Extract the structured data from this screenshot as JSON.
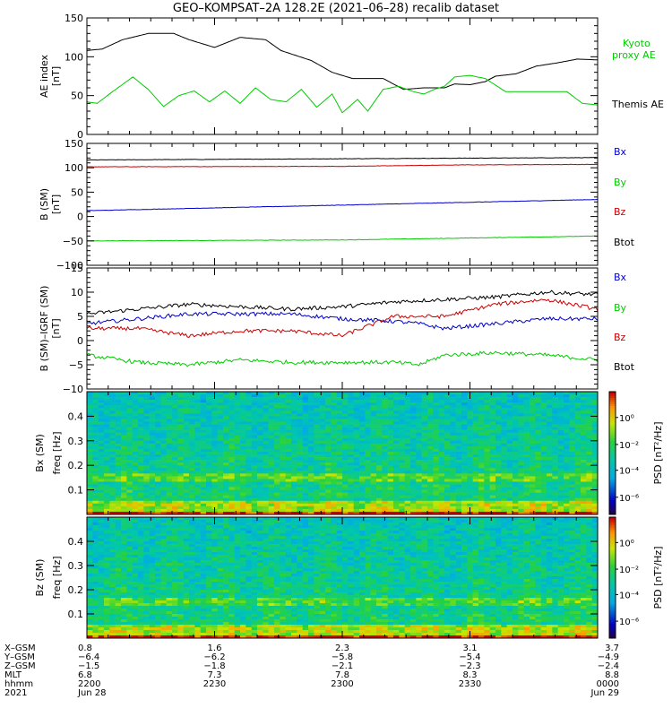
{
  "title": "GEO–KOMPSAT–2A 128.2E (2021–06–28) recalib dataset",
  "colors": {
    "black": "#000000",
    "green": "#00cc00",
    "red": "#cc0000",
    "blue": "#0000cc"
  },
  "chart_data": [
    {
      "type": "line",
      "ylabel": "AE index",
      "yunit": "[nT]",
      "ylim": [
        0,
        150
      ],
      "yticks": [
        "0",
        "50",
        "100",
        "150"
      ],
      "legend": [
        {
          "name": "Kyoto proxy AE",
          "color": "#00cc00"
        },
        {
          "name": "Themis AE",
          "color": "#000000"
        }
      ],
      "series": [
        {
          "name": "Themis AE",
          "color": "#000000",
          "x": [
            0,
            3,
            7,
            12,
            17,
            20,
            25,
            30,
            35,
            38,
            44,
            48,
            52,
            58,
            62,
            66,
            70,
            72,
            75,
            78,
            80,
            84,
            88,
            92,
            96,
            100
          ],
          "y": [
            108,
            110,
            122,
            130,
            130,
            122,
            112,
            125,
            122,
            108,
            95,
            80,
            72,
            72,
            58,
            60,
            60,
            65,
            64,
            68,
            75,
            78,
            88,
            92,
            97,
            96
          ]
        },
        {
          "name": "Kyoto proxy AE",
          "color": "#00cc00",
          "x": [
            0,
            2,
            5,
            9,
            12,
            15,
            18,
            21,
            24,
            27,
            30,
            33,
            36,
            39,
            42,
            45,
            48,
            50,
            53,
            55,
            58,
            61,
            64,
            66,
            68,
            70,
            72,
            75,
            78,
            82,
            86,
            90,
            94,
            97,
            100
          ],
          "y": [
            42,
            40,
            55,
            74,
            58,
            36,
            50,
            56,
            42,
            56,
            40,
            60,
            45,
            42,
            58,
            35,
            52,
            28,
            45,
            30,
            58,
            62,
            55,
            52,
            58,
            62,
            74,
            76,
            72,
            55,
            55,
            55,
            55,
            40,
            38
          ]
        }
      ]
    },
    {
      "type": "line",
      "ylabel": "B (SM)",
      "yunit": "[nT]",
      "ylim": [
        -100,
        150
      ],
      "yticks": [
        "−100",
        "−50",
        "0",
        "50",
        "100",
        "150"
      ],
      "legend": [
        {
          "name": "Bx",
          "color": "#0000cc"
        },
        {
          "name": "By",
          "color": "#00cc00"
        },
        {
          "name": "Bz",
          "color": "#cc0000"
        },
        {
          "name": "Btot",
          "color": "#000000"
        }
      ],
      "series": [
        {
          "name": "Btot",
          "color": "#000000",
          "x": [
            0,
            100
          ],
          "y": [
            116,
            121
          ]
        },
        {
          "name": "Bz",
          "color": "#cc0000",
          "x": [
            0,
            50,
            75,
            100
          ],
          "y": [
            102,
            103,
            106,
            107
          ]
        },
        {
          "name": "Bx",
          "color": "#0000cc",
          "x": [
            0,
            100
          ],
          "y": [
            12,
            35
          ]
        },
        {
          "name": "By",
          "color": "#00cc00",
          "x": [
            0,
            50,
            100
          ],
          "y": [
            -50,
            -48,
            -40
          ]
        }
      ]
    },
    {
      "type": "line",
      "ylabel": "B (SM)–IGRF (SM)",
      "yunit": "[nT]",
      "ylim": [
        -10,
        15
      ],
      "yticks": [
        "−10",
        "−5",
        "0",
        "5",
        "10",
        "15"
      ],
      "legend": [
        {
          "name": "Bx",
          "color": "#0000cc"
        },
        {
          "name": "By",
          "color": "#00cc00"
        },
        {
          "name": "Bz",
          "color": "#cc0000"
        },
        {
          "name": "Btot",
          "color": "#000000"
        }
      ],
      "series": [
        {
          "name": "Btot",
          "color": "#000000",
          "x": [
            0,
            10,
            20,
            30,
            40,
            50,
            60,
            70,
            80,
            90,
            100
          ],
          "y": [
            5.5,
            6.5,
            7.5,
            7,
            6.5,
            7,
            8,
            8.5,
            9,
            10,
            9.5
          ]
        },
        {
          "name": "Bx",
          "color": "#0000cc",
          "x": [
            0,
            10,
            20,
            30,
            40,
            50,
            60,
            65,
            70,
            80,
            90,
            100
          ],
          "y": [
            3.5,
            4.5,
            5.5,
            5.5,
            5.5,
            4.5,
            4,
            3.5,
            2.5,
            3.5,
            4.5,
            4.5
          ]
        },
        {
          "name": "Bz",
          "color": "#cc0000",
          "x": [
            0,
            10,
            20,
            30,
            40,
            50,
            60,
            70,
            80,
            90,
            95,
            100
          ],
          "y": [
            2.5,
            2.5,
            1,
            2,
            2,
            1,
            5,
            5,
            7.5,
            8.5,
            7.5,
            6.5
          ]
        },
        {
          "name": "By",
          "color": "#00cc00",
          "x": [
            0,
            10,
            20,
            30,
            40,
            50,
            60,
            65,
            70,
            80,
            90,
            100
          ],
          "y": [
            -3,
            -4.5,
            -5,
            -4,
            -4.5,
            -4.5,
            -4.5,
            -5,
            -3,
            -2.5,
            -3,
            -4
          ]
        }
      ]
    },
    {
      "type": "heatmap",
      "ylabel": "Bx (SM)",
      "sublabel": "freq [Hz]",
      "yticks": [
        "0.1",
        "0.2",
        "0.3",
        "0.4"
      ],
      "colorbar_label": "PSD [nT²/Hz]",
      "colorbar_ticks": [
        "10⁰",
        "10⁻²",
        "10⁻⁴",
        "10⁻⁶"
      ]
    },
    {
      "type": "heatmap",
      "ylabel": "Bz (SM)",
      "sublabel": "freq [Hz]",
      "yticks": [
        "0.1",
        "0.2",
        "0.3",
        "0.4"
      ],
      "colorbar_label": "PSD [nT²/Hz]",
      "colorbar_ticks": [
        "10⁰",
        "10⁻²",
        "10⁻⁴",
        "10⁻⁶"
      ]
    }
  ],
  "ephemeris": {
    "labels": [
      "X–GSM",
      "Y–GSM",
      "Z–GSM",
      "MLT",
      "hhmm",
      "2021"
    ],
    "columns": [
      [
        "0.8",
        "−6.4",
        "−1.5",
        "6.8",
        "2200",
        "Jun 28"
      ],
      [
        "1.6",
        "−6.2",
        "−1.8",
        "7.3",
        "2230",
        ""
      ],
      [
        "2.3",
        "−5.8",
        "−2.1",
        "7.8",
        "2300",
        ""
      ],
      [
        "3.1",
        "−5.4",
        "−2.3",
        "8.3",
        "2330",
        ""
      ],
      [
        "3.7",
        "−4.9",
        "−2.4",
        "8.8",
        "0000",
        "Jun 29"
      ]
    ]
  }
}
